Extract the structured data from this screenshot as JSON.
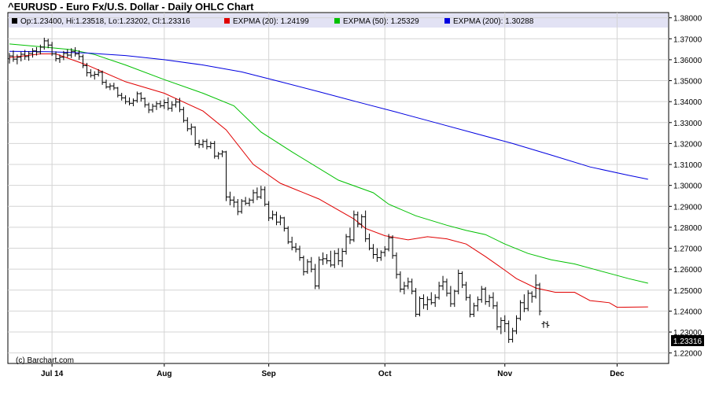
{
  "chart_data": {
    "type": "ohlc",
    "title": "^EURUSD - Euro Fx/U.S. Dollar - Daily OHLC Chart",
    "credit": "(c) Barchart.com",
    "legend_placement": "top",
    "last_value_label": "1.23316",
    "legend": [
      {
        "text": "Op:1.23400, Hi:1.23518, Lo:1.23202, Cl:1.23316",
        "color": "#000000"
      },
      {
        "text": "EXPMA (20): 1.24199",
        "color": "#e00000"
      },
      {
        "text": "EXPMA (50): 1.25329",
        "color": "#00c000"
      },
      {
        "text": "EXPMA (200): 1.30288",
        "color": "#0000e0"
      }
    ],
    "y_range": [
      1.215,
      1.3825
    ],
    "y_ticks": [
      "1.22000",
      "1.23000",
      "1.24000",
      "1.25000",
      "1.26000",
      "1.27000",
      "1.28000",
      "1.29000",
      "1.30000",
      "1.31000",
      "1.32000",
      "1.33000",
      "1.34000",
      "1.35000",
      "1.36000",
      "1.37000",
      "1.38000"
    ],
    "x_ticks": [
      {
        "label": "Jul 14",
        "index": 11
      },
      {
        "label": "Aug",
        "index": 40
      },
      {
        "label": "Sep",
        "index": 67
      },
      {
        "label": "Oct",
        "index": 97
      },
      {
        "label": "Nov",
        "index": 128
      },
      {
        "label": "Dec",
        "index": 157
      }
    ],
    "ohlc": [
      [
        1.3604,
        1.3632,
        1.3582,
        1.3618
      ],
      [
        1.3618,
        1.3644,
        1.359,
        1.3603
      ],
      [
        1.3603,
        1.3625,
        1.3578,
        1.3612
      ],
      [
        1.3612,
        1.3638,
        1.3592,
        1.3626
      ],
      [
        1.3626,
        1.3647,
        1.36,
        1.3615
      ],
      [
        1.3615,
        1.364,
        1.3595,
        1.363
      ],
      [
        1.363,
        1.3655,
        1.361,
        1.3642
      ],
      [
        1.3642,
        1.366,
        1.362,
        1.3637
      ],
      [
        1.3637,
        1.3672,
        1.3625,
        1.366
      ],
      [
        1.366,
        1.3705,
        1.3648,
        1.369
      ],
      [
        1.369,
        1.37,
        1.3655,
        1.367
      ],
      [
        1.367,
        1.3685,
        1.3618,
        1.3628
      ],
      [
        1.3628,
        1.364,
        1.3592,
        1.3605
      ],
      [
        1.3605,
        1.3625,
        1.3585,
        1.3612
      ],
      [
        1.3612,
        1.3642,
        1.3598,
        1.363
      ],
      [
        1.363,
        1.365,
        1.361,
        1.3622
      ],
      [
        1.3622,
        1.3655,
        1.3608,
        1.364
      ],
      [
        1.364,
        1.366,
        1.3615,
        1.3628
      ],
      [
        1.3628,
        1.3645,
        1.36,
        1.3615
      ],
      [
        1.3615,
        1.3625,
        1.356,
        1.3572
      ],
      [
        1.3572,
        1.3585,
        1.352,
        1.3538
      ],
      [
        1.3538,
        1.3555,
        1.3515,
        1.3525
      ],
      [
        1.3525,
        1.3545,
        1.3505,
        1.353
      ],
      [
        1.353,
        1.3555,
        1.352,
        1.354
      ],
      [
        1.354,
        1.3548,
        1.348,
        1.3492
      ],
      [
        1.3492,
        1.3505,
        1.3462,
        1.347
      ],
      [
        1.347,
        1.3488,
        1.3455,
        1.3475
      ],
      [
        1.3475,
        1.349,
        1.3455,
        1.3465
      ],
      [
        1.3465,
        1.347,
        1.342,
        1.343
      ],
      [
        1.343,
        1.3442,
        1.3405,
        1.3418
      ],
      [
        1.3418,
        1.343,
        1.3388,
        1.34
      ],
      [
        1.34,
        1.342,
        1.3382,
        1.3392
      ],
      [
        1.3392,
        1.3415,
        1.3378,
        1.3405
      ],
      [
        1.3405,
        1.3448,
        1.3395,
        1.3438
      ],
      [
        1.3438,
        1.3445,
        1.34,
        1.3415
      ],
      [
        1.3415,
        1.342,
        1.3372,
        1.3385
      ],
      [
        1.3385,
        1.3395,
        1.3345,
        1.336
      ],
      [
        1.336,
        1.339,
        1.3348,
        1.3378
      ],
      [
        1.3378,
        1.3402,
        1.336,
        1.339
      ],
      [
        1.339,
        1.3405,
        1.337,
        1.338
      ],
      [
        1.338,
        1.341,
        1.3365,
        1.3395
      ],
      [
        1.3395,
        1.342,
        1.3358,
        1.3368
      ],
      [
        1.3368,
        1.3402,
        1.3352,
        1.3385
      ],
      [
        1.3385,
        1.3415,
        1.3372,
        1.3398
      ],
      [
        1.3398,
        1.3418,
        1.335,
        1.3362
      ],
      [
        1.3362,
        1.3375,
        1.33,
        1.331
      ],
      [
        1.331,
        1.3325,
        1.3258,
        1.327
      ],
      [
        1.327,
        1.3295,
        1.324,
        1.3278
      ],
      [
        1.3278,
        1.3282,
        1.319,
        1.32
      ],
      [
        1.32,
        1.3218,
        1.3178,
        1.3195
      ],
      [
        1.3195,
        1.322,
        1.318,
        1.321
      ],
      [
        1.321,
        1.3222,
        1.3172,
        1.3185
      ],
      [
        1.3185,
        1.321,
        1.3175,
        1.32
      ],
      [
        1.32,
        1.3212,
        1.3128,
        1.314
      ],
      [
        1.314,
        1.316,
        1.3125,
        1.315
      ],
      [
        1.315,
        1.3168,
        1.3135,
        1.316
      ],
      [
        1.316,
        1.3165,
        1.2925,
        1.2945
      ],
      [
        1.2945,
        1.297,
        1.2905,
        1.293
      ],
      [
        1.293,
        1.2948,
        1.2895,
        1.292
      ],
      [
        1.292,
        1.2935,
        1.2858,
        1.2875
      ],
      [
        1.2875,
        1.2935,
        1.2865,
        1.2925
      ],
      [
        1.2925,
        1.2945,
        1.2905,
        1.2915
      ],
      [
        1.2915,
        1.294,
        1.29,
        1.293
      ],
      [
        1.293,
        1.298,
        1.2915,
        1.2965
      ],
      [
        1.2965,
        1.299,
        1.293,
        1.2945
      ],
      [
        1.2945,
        1.2998,
        1.2935,
        1.298
      ],
      [
        1.298,
        1.2995,
        1.29,
        1.291
      ],
      [
        1.291,
        1.2925,
        1.283,
        1.2845
      ],
      [
        1.2845,
        1.288,
        1.2835,
        1.286
      ],
      [
        1.286,
        1.2875,
        1.281,
        1.2825
      ],
      [
        1.2825,
        1.2858,
        1.281,
        1.2845
      ],
      [
        1.2845,
        1.285,
        1.278,
        1.2795
      ],
      [
        1.2795,
        1.2805,
        1.272,
        1.273
      ],
      [
        1.273,
        1.2755,
        1.269,
        1.2705
      ],
      [
        1.2705,
        1.2725,
        1.268,
        1.2695
      ],
      [
        1.2695,
        1.2712,
        1.264,
        1.2655
      ],
      [
        1.2655,
        1.2665,
        1.257,
        1.2588
      ],
      [
        1.2588,
        1.2648,
        1.2578,
        1.2635
      ],
      [
        1.2635,
        1.2658,
        1.2585,
        1.26
      ],
      [
        1.26,
        1.2625,
        1.2505,
        1.252
      ],
      [
        1.252,
        1.266,
        1.2505,
        1.2645
      ],
      [
        1.2645,
        1.268,
        1.262,
        1.265
      ],
      [
        1.265,
        1.2672,
        1.2625,
        1.264
      ],
      [
        1.264,
        1.2688,
        1.261,
        1.262
      ],
      [
        1.262,
        1.269,
        1.2605,
        1.2675
      ],
      [
        1.2675,
        1.27,
        1.262,
        1.264
      ],
      [
        1.264,
        1.27,
        1.261,
        1.2685
      ],
      [
        1.2685,
        1.2768,
        1.267,
        1.2755
      ],
      [
        1.2755,
        1.2798,
        1.272,
        1.274
      ],
      [
        1.274,
        1.288,
        1.273,
        1.286
      ],
      [
        1.286,
        1.2875,
        1.28,
        1.2815
      ],
      [
        1.2815,
        1.2862,
        1.2795,
        1.285
      ],
      [
        1.285,
        1.288,
        1.273,
        1.2745
      ],
      [
        1.2745,
        1.277,
        1.269,
        1.27
      ],
      [
        1.27,
        1.272,
        1.265,
        1.267
      ],
      [
        1.267,
        1.27,
        1.2635,
        1.2655
      ],
      [
        1.2655,
        1.269,
        1.264,
        1.268
      ],
      [
        1.268,
        1.271,
        1.266,
        1.2695
      ],
      [
        1.2695,
        1.2768,
        1.2685,
        1.275
      ],
      [
        1.275,
        1.2762,
        1.265,
        1.2665
      ],
      [
        1.2665,
        1.268,
        1.2555,
        1.2575
      ],
      [
        1.2575,
        1.259,
        1.249,
        1.2505
      ],
      [
        1.2505,
        1.254,
        1.248,
        1.252
      ],
      [
        1.252,
        1.256,
        1.2505,
        1.254
      ],
      [
        1.254,
        1.2555,
        1.248,
        1.2495
      ],
      [
        1.2495,
        1.251,
        1.2372,
        1.2385
      ],
      [
        1.2385,
        1.247,
        1.2375,
        1.246
      ],
      [
        1.246,
        1.248,
        1.241,
        1.243
      ],
      [
        1.243,
        1.247,
        1.2405,
        1.2455
      ],
      [
        1.2455,
        1.249,
        1.243,
        1.244
      ],
      [
        1.244,
        1.248,
        1.242,
        1.2465
      ],
      [
        1.2465,
        1.254,
        1.2455,
        1.252
      ],
      [
        1.252,
        1.2568,
        1.25,
        1.254
      ],
      [
        1.254,
        1.2555,
        1.247,
        1.2485
      ],
      [
        1.2485,
        1.252,
        1.242,
        1.2435
      ],
      [
        1.2435,
        1.2502,
        1.242,
        1.2495
      ],
      [
        1.2495,
        1.2598,
        1.248,
        1.258
      ],
      [
        1.258,
        1.259,
        1.251,
        1.2525
      ],
      [
        1.2525,
        1.254,
        1.245,
        1.2465
      ],
      [
        1.2465,
        1.248,
        1.237,
        1.2385
      ],
      [
        1.2385,
        1.244,
        1.2372,
        1.2425
      ],
      [
        1.2425,
        1.247,
        1.24,
        1.2455
      ],
      [
        1.2455,
        1.252,
        1.244,
        1.2505
      ],
      [
        1.2505,
        1.2515,
        1.243,
        1.2445
      ],
      [
        1.2445,
        1.2478,
        1.242,
        1.2465
      ],
      [
        1.2465,
        1.249,
        1.241,
        1.2425
      ],
      [
        1.2425,
        1.2445,
        1.231,
        1.2325
      ],
      [
        1.2325,
        1.237,
        1.229,
        1.2355
      ],
      [
        1.2355,
        1.238,
        1.23,
        1.234
      ],
      [
        1.234,
        1.2355,
        1.2248,
        1.2265
      ],
      [
        1.2265,
        1.232,
        1.225,
        1.2305
      ],
      [
        1.2305,
        1.238,
        1.229,
        1.2365
      ],
      [
        1.2365,
        1.2452,
        1.2355,
        1.244
      ],
      [
        1.244,
        1.248,
        1.2395,
        1.2412
      ],
      [
        1.2412,
        1.25,
        1.24,
        1.2485
      ],
      [
        1.2485,
        1.2495,
        1.244,
        1.247
      ],
      [
        1.247,
        1.2575,
        1.246,
        1.2525
      ],
      [
        1.2525,
        1.2535,
        1.238,
        1.24
      ],
      [
        1.234,
        1.2352,
        1.232,
        1.2345
      ],
      [
        1.234,
        1.2352,
        1.232,
        1.2332
      ]
    ],
    "series": [
      {
        "name": "EXPMA (20)",
        "color": "#e00000",
        "x": [
          0,
          8,
          12,
          20,
          30,
          40,
          50,
          56,
          63,
          70,
          80,
          89,
          92,
          97,
          103,
          108,
          113,
          118,
          123,
          128,
          131,
          136,
          141,
          146,
          150,
          155,
          157,
          165
        ],
        "values": [
          1.361,
          1.3628,
          1.3628,
          1.3575,
          1.3495,
          1.344,
          1.3355,
          1.3265,
          1.31,
          1.301,
          1.2935,
          1.284,
          1.2795,
          1.276,
          1.274,
          1.2755,
          1.2745,
          1.272,
          1.266,
          1.2595,
          1.2555,
          1.251,
          1.249,
          1.249,
          1.245,
          1.244,
          1.2418,
          1.242
        ]
      },
      {
        "name": "EXPMA (50)",
        "color": "#00c000",
        "x": [
          0,
          8,
          16,
          22,
          30,
          40,
          50,
          58,
          65,
          73,
          85,
          94,
          98,
          105,
          113,
          118,
          123,
          128,
          134,
          140,
          146,
          151,
          156,
          160,
          165
        ],
        "values": [
          1.3675,
          1.3662,
          1.3648,
          1.3625,
          1.3575,
          1.3505,
          1.344,
          1.338,
          1.3255,
          1.316,
          1.3025,
          1.2965,
          1.291,
          1.2855,
          1.281,
          1.2785,
          1.2765,
          1.272,
          1.2675,
          1.2645,
          1.2625,
          1.26,
          1.2575,
          1.2555,
          1.2533
        ]
      },
      {
        "name": "EXPMA (200)",
        "color": "#0000e0",
        "x": [
          0,
          10,
          20,
          30,
          40,
          50,
          60,
          70,
          80,
          90,
          100,
          110,
          120,
          130,
          140,
          150,
          160,
          165
        ],
        "values": [
          1.364,
          1.3638,
          1.3632,
          1.362,
          1.36,
          1.3575,
          1.3542,
          1.3495,
          1.3447,
          1.3398,
          1.335,
          1.33,
          1.325,
          1.32,
          1.3145,
          1.3088,
          1.3048,
          1.3029
        ]
      }
    ]
  }
}
